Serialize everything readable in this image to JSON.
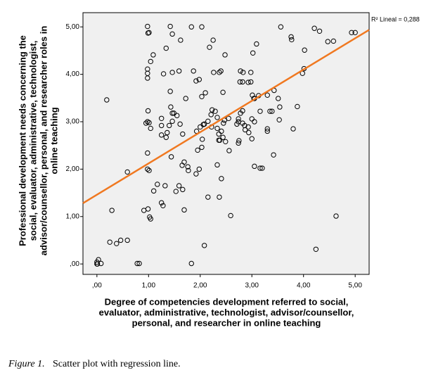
{
  "chart_data": {
    "type": "scatter",
    "x_label": [
      "Degree of competencies development referred to social,",
      "evaluator, administrative, technologist, advisor/counsellor,",
      "personal, and researcher in online teaching"
    ],
    "y_label": [
      "Professional development needs concerning the",
      "social, evaluator, administrative, technologist,",
      "advisor/counsellor, personal, and researcher roles in",
      "online teaching"
    ],
    "annotation": "R² Lineal = 0,288",
    "caption_label": "Figure 1.",
    "caption": "Scatter plot with regression line.",
    "xlim": [
      -0.27,
      5.27
    ],
    "ylim": [
      -0.22,
      5.3
    ],
    "xticks": [
      {
        "value": 0,
        "label": ",00"
      },
      {
        "value": 1,
        "label": "1,00"
      },
      {
        "value": 2,
        "label": "2,00"
      },
      {
        "value": 3,
        "label": "3,00"
      },
      {
        "value": 4,
        "label": "4,00"
      },
      {
        "value": 5,
        "label": "5,00"
      }
    ],
    "yticks": [
      {
        "value": 0,
        "label": ",00"
      },
      {
        "value": 1,
        "label": "1,00"
      },
      {
        "value": 2,
        "label": "2,00"
      },
      {
        "value": 3,
        "label": "3,00"
      },
      {
        "value": 4,
        "label": "4,00"
      },
      {
        "value": 5,
        "label": "5,00"
      }
    ],
    "marker_color": "#000000",
    "background": "#f0f0f0",
    "regression": {
      "intercept": 1.46,
      "slope": 0.66,
      "color": "#f07820"
    },
    "x": [
      0,
      0.03,
      0,
      0.08,
      0.01,
      0.19,
      0.29,
      0.25,
      0.38,
      0.46,
      0.59,
      0.59,
      0.78,
      0.82,
      0.91,
      0.99,
      1.02,
      1.04,
      1.1,
      1.17,
      0.98,
      0.99,
      1.01,
      1.04,
      1.09,
      0.98,
      0.98,
      0.98,
      0.99,
      0.98,
      1.01,
      0.95,
      1.04,
      0.98,
      0.98,
      1.01,
      1.25,
      1.28,
      1.32,
      1.34,
      1.29,
      1.42,
      1.46,
      1.46,
      1.59,
      1.62,
      1.42,
      1.43,
      1.46,
      1.49,
      1.46,
      1.4,
      1.36,
      1.34,
      1.44,
      1.25,
      1.25,
      1.25,
      1.55,
      1.61,
      1.66,
      1.72,
      1.59,
      1.53,
      1.66,
      1.69,
      1.65,
      1.76,
      1.77,
      1.69,
      1.83,
      1.87,
      1.92,
      2.03,
      1.98,
      2.03,
      2.1,
      2.06,
      2.08,
      2.0,
      1.93,
      2.03,
      2.04,
      1.98,
      1.95,
      1.92,
      1.83,
      2.08,
      2.18,
      2.25,
      2.26,
      2.37,
      2.4,
      2.44,
      2.15,
      2.21,
      2.22,
      2.23,
      2.33,
      2.29,
      2.33,
      2.36,
      2.38,
      2.44,
      2.49,
      2.41,
      2.45,
      2.47,
      2.33,
      2.41,
      2.37,
      2.15,
      2.36,
      2.48,
      2.59,
      2.56,
      2.55,
      2.78,
      2.83,
      2.77,
      2.82,
      2.93,
      2.98,
      2.98,
      3.02,
      3.01,
      3.04,
      2.82,
      2.78,
      2.74,
      2.71,
      2.74,
      2.82,
      2.86,
      2.87,
      2.94,
      2.93,
      3.0,
      3.05,
      3.0,
      2.75,
      2.74,
      3.05,
      3.16,
      3.2,
      3.09,
      3.05,
      3.13,
      3.16,
      3.3,
      3.3,
      3.3,
      3.35,
      3.39,
      3.43,
      3.42,
      3.56,
      3.76,
      3.77,
      3.88,
      4.01,
      3.98,
      3.51,
      3.54,
      3.53,
      3.8,
      4.21,
      4.31,
      4.47,
      4.58,
      4.93,
      5.0,
      4.02,
      4.63,
      4.24
    ],
    "y": [
      0.04,
      0.09,
      0,
      0.01,
      0,
      3.46,
      1.13,
      0.46,
      0.43,
      0.5,
      0.5,
      1.94,
      0.01,
      0.01,
      1.13,
      1.16,
      0.99,
      0.95,
      1.54,
      1.68,
      5.01,
      4.87,
      4.88,
      4.27,
      4.41,
      4.11,
      4.02,
      3.92,
      3.23,
      3.0,
      2.98,
      2.97,
      2.86,
      2.34,
      2.0,
      1.97,
      1.29,
      1.23,
      1.65,
      4.55,
      4.01,
      5.01,
      4.85,
      4.04,
      4.07,
      4.72,
      3.64,
      3.31,
      3.18,
      3.18,
      3.01,
      2.92,
      2.77,
      2.67,
      2.26,
      2.92,
      2.72,
      3.07,
      3.13,
      2.95,
      2.74,
      3.49,
      1.65,
      1.53,
      1.57,
      2.15,
      2.08,
      2.05,
      1.97,
      1.14,
      5.0,
      4.07,
      3.86,
      5.0,
      3.89,
      3.53,
      3.61,
      2.94,
      2.95,
      2.89,
      2.8,
      2.46,
      2.63,
      2.0,
      2.4,
      1.9,
      0.01,
      0.39,
      4.57,
      4.72,
      4.04,
      4.04,
      4.07,
      3.62,
      3.01,
      3.15,
      2.89,
      3.25,
      2.86,
      3.22,
      3.09,
      2.74,
      2.61,
      2.67,
      2.58,
      2.8,
      2.97,
      3.03,
      2.09,
      1.8,
      1.41,
      1.41,
      2.61,
      4.41,
      1.02,
      2.39,
      3.07,
      4.07,
      4.04,
      3.84,
      3.84,
      3.83,
      4.04,
      3.84,
      4.45,
      3.56,
      3.49,
      3.23,
      3.18,
      3.06,
      2.95,
      3.0,
      2.97,
      2.92,
      2.83,
      2.77,
      2.89,
      3.06,
      3.0,
      2.64,
      2.6,
      2.55,
      2.06,
      2.02,
      2.02,
      4.64,
      3.49,
      3.55,
      3.22,
      3.56,
      2.85,
      2.8,
      3.22,
      3.22,
      3.66,
      2.3,
      5.0,
      4.79,
      4.73,
      3.32,
      4.12,
      4.02,
      3.49,
      3.31,
      3.04,
      2.85,
      4.97,
      4.91,
      4.69,
      4.7,
      4.88,
      4.88,
      4.51,
      1.01,
      0.31
    ]
  }
}
